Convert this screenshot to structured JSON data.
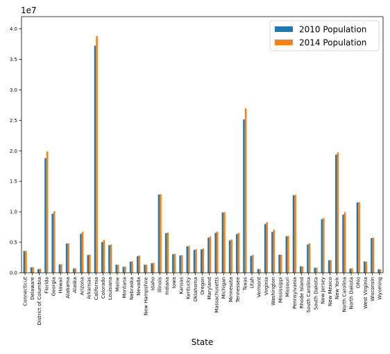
{
  "chart_data": {
    "type": "bar",
    "title": "",
    "xlabel": "State",
    "ylabel": "",
    "y_multiplier_label": "1e7",
    "y_ticks": [
      "0.0",
      "0.5",
      "1.0",
      "1.5",
      "2.0",
      "2.5",
      "3.0",
      "3.5",
      "4.0"
    ],
    "ylim": [
      0,
      4.2
    ],
    "y_unit_factor": 10000000,
    "grid": false,
    "legend_position": "top-right",
    "categories": [
      "Connecticut",
      "Delaware",
      "District of Columbia",
      "Florida",
      "Georgia",
      "Hawaii",
      "Alabama",
      "Alaska",
      "Arizona",
      "Arkansas",
      "California",
      "Colorado",
      "Louisiana",
      "Maine",
      "Montana",
      "Nebraska",
      "Nevada",
      "New Hampshire",
      "Idaho",
      "Illinois",
      "Indiana",
      "Iowa",
      "Kansas",
      "Kentucky",
      "Oklahoma",
      "Oregon",
      "Maryland",
      "Massachusetts",
      "Michigan",
      "Minnesota",
      "Tennessee",
      "Texas",
      "Utah",
      "Vermont",
      "Virginia",
      "Washington",
      "Mississippi",
      "Missouri",
      "Pennsylvania",
      "Rhode Island",
      "South Carolina",
      "South Dakota",
      "New Jersey",
      "New Mexico",
      "New York",
      "North Carolina",
      "North Dakota",
      "Ohio",
      "West Virginia",
      "Wisconsin",
      "Wyoming"
    ],
    "series": [
      {
        "name": "2010 Population",
        "color": "#1f77b4",
        "values": [
          3574097,
          897934,
          601723,
          18801310,
          9687653,
          1360301,
          4779736,
          710231,
          6392017,
          2915918,
          37253956,
          5029196,
          4533372,
          1328361,
          989415,
          1826341,
          2700551,
          1316470,
          1567582,
          12830632,
          6483802,
          3046355,
          2853118,
          4339367,
          3751351,
          3831074,
          5773552,
          6547629,
          9883640,
          5303925,
          6346105,
          25145561,
          2763885,
          625741,
          8001024,
          6724540,
          2967297,
          5988927,
          12702379,
          1052567,
          4625364,
          814180,
          8791894,
          2059179,
          19378102,
          9535483,
          672591,
          11536504,
          1852994,
          5686986,
          563626
        ]
      },
      {
        "name": "2014 Population",
        "color": "#ff7f0e",
        "values": [
          3596677,
          935614,
          658893,
          19893297,
          10097343,
          1419561,
          4849377,
          736732,
          6731484,
          2966369,
          38802500,
          5355866,
          4649676,
          1330089,
          1023579,
          1881503,
          2839099,
          1326813,
          1634464,
          12880580,
          6596855,
          3107126,
          2904021,
          4413457,
          3878051,
          3970239,
          5976407,
          6745408,
          9909877,
          5457173,
          6549352,
          26956958,
          2942902,
          626562,
          8326289,
          7061530,
          2994079,
          6063589,
          12787209,
          1055173,
          4832482,
          853175,
          8938175,
          2085572,
          19746227,
          9943964,
          739482,
          11594163,
          1850326,
          5757564,
          584153
        ]
      }
    ]
  }
}
